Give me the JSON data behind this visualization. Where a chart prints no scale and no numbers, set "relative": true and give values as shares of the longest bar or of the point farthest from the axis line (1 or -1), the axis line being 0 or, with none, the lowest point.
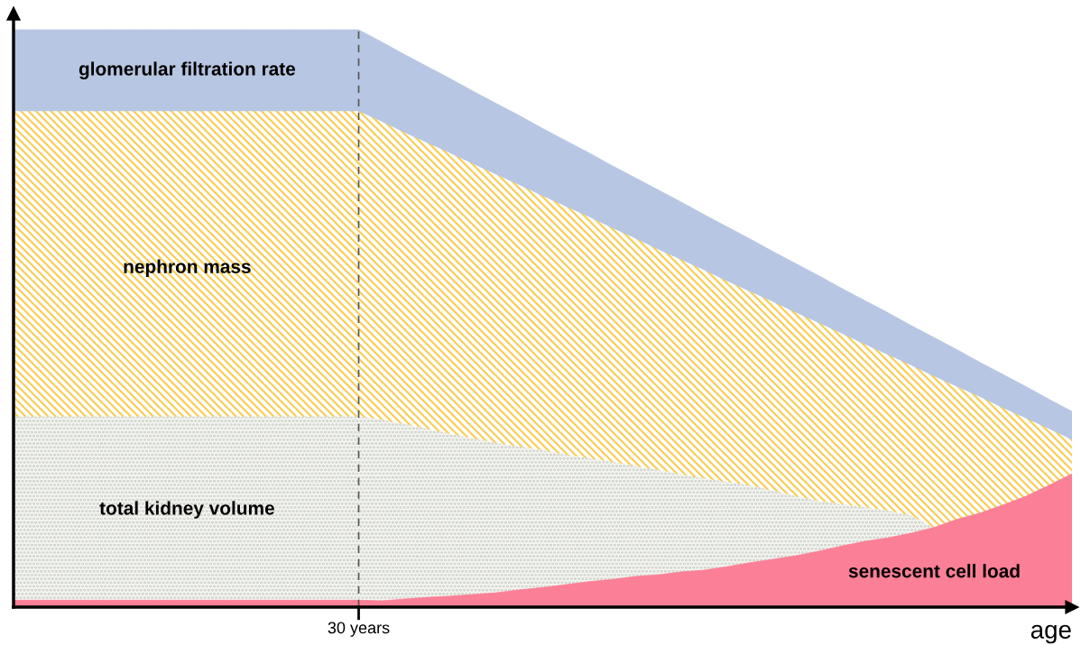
{
  "chart_data": {
    "type": "area",
    "relative": true,
    "xlabel": "age",
    "categories": [
      null,
      null,
      null,
      null,
      null,
      null,
      null,
      null,
      null,
      null,
      null,
      null,
      null,
      null,
      null,
      null,
      null,
      null,
      null,
      null,
      null,
      null,
      null,
      null,
      null,
      null,
      null,
      null,
      null,
      null,
      null,
      null,
      null,
      null,
      null,
      null,
      null,
      null,
      null,
      null,
      null,
      null,
      null,
      null,
      null,
      null,
      null
    ],
    "annotations": [
      "30 years"
    ],
    "series": [
      {
        "name": "glomerular filtration rate",
        "color": "#b7c6e2",
        "values": [
          1,
          1,
          1,
          1,
          1,
          1,
          1,
          1,
          1,
          1,
          1,
          1,
          1,
          1,
          1,
          1,
          0.979,
          0.957,
          0.936,
          0.915,
          0.893,
          0.872,
          0.851,
          0.829,
          0.808,
          0.787,
          0.765,
          0.744,
          0.723,
          0.702,
          0.68,
          0.659,
          0.638,
          0.616,
          0.595,
          0.574,
          0.552,
          0.531,
          0.51,
          0.488,
          0.467,
          0.446,
          0.424,
          0.403,
          0.382,
          0.36,
          0.339
        ]
      },
      {
        "name": "nephron mass",
        "color": "#f7cf5a",
        "values": [
          0.859,
          0.859,
          0.859,
          0.859,
          0.859,
          0.859,
          0.859,
          0.859,
          0.859,
          0.859,
          0.859,
          0.859,
          0.859,
          0.859,
          0.859,
          0.859,
          0.841,
          0.822,
          0.804,
          0.786,
          0.767,
          0.749,
          0.731,
          0.712,
          0.694,
          0.676,
          0.657,
          0.639,
          0.62,
          0.602,
          0.584,
          0.565,
          0.547,
          0.529,
          0.51,
          0.492,
          0.474,
          0.455,
          0.437,
          0.419,
          0.4,
          0.382,
          0.364,
          0.345,
          0.327,
          0.309,
          0.29
        ]
      },
      {
        "name": "total kidney volume",
        "color": "#c9cdc4",
        "values": [
          0.33,
          0.33,
          0.33,
          0.33,
          0.33,
          0.33,
          0.33,
          0.33,
          0.33,
          0.33,
          0.33,
          0.33,
          0.33,
          0.33,
          0.33,
          0.33,
          0.325,
          0.317,
          0.309,
          0.3,
          0.292,
          0.284,
          0.278,
          0.272,
          0.264,
          0.258,
          0.252,
          0.244,
          0.238,
          0.23,
          0.223,
          0.217,
          0.211,
          0.202,
          0.192,
          0.184,
          0.178,
          0.173,
          0.167,
          0.159,
          0.138,
          null,
          null,
          null,
          null,
          null,
          null
        ]
      },
      {
        "name": "senescent cell load",
        "color": "#fb7f96",
        "values": [
          0.012,
          0.012,
          0.012,
          0.012,
          0.012,
          0.012,
          0.012,
          0.012,
          0.012,
          0.012,
          0.012,
          0.012,
          0.012,
          0.012,
          0.012,
          0.012,
          0.011,
          0.014,
          0.017,
          0.019,
          0.022,
          0.025,
          0.03,
          0.034,
          0.039,
          0.044,
          0.048,
          0.053,
          0.056,
          0.061,
          0.064,
          0.07,
          0.077,
          0.083,
          0.089,
          0.097,
          0.106,
          0.114,
          0.12,
          0.128,
          0.138,
          0.152,
          0.163,
          0.177,
          0.192,
          0.211,
          0.231
        ]
      }
    ]
  }
}
